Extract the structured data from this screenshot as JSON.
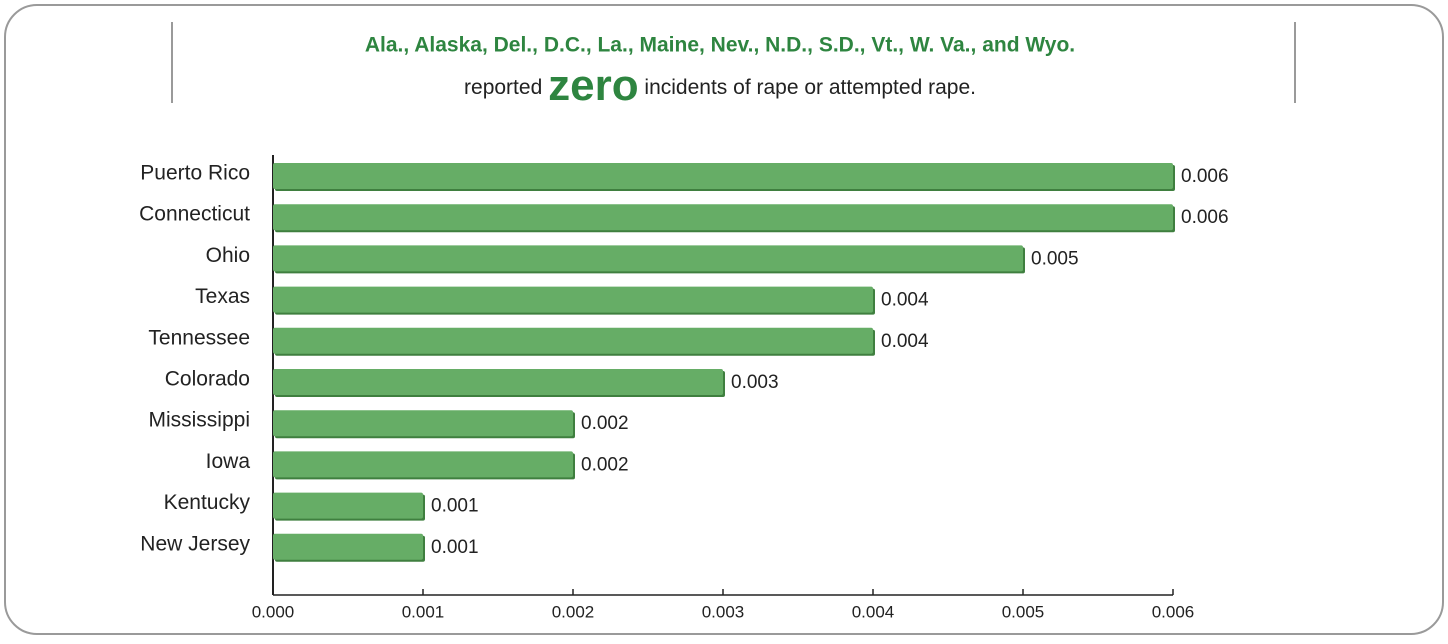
{
  "chart_data": {
    "type": "bar",
    "orientation": "horizontal",
    "title": "Ala., Alaska, Del., D.C., La., Maine, Nev., N.D., S.D., Vt., W. Va., and Wyo.",
    "subtitle_parts": [
      "reported",
      "zero",
      "incidents of rape or attempted rape."
    ],
    "categories": [
      "Puerto Rico",
      "Connecticut",
      "Ohio",
      "Texas",
      "Tennessee",
      "Colorado",
      "Mississippi",
      "Iowa",
      "Kentucky",
      "New Jersey"
    ],
    "values": [
      0.006,
      0.006,
      0.005,
      0.004,
      0.004,
      0.003,
      0.002,
      0.002,
      0.001,
      0.001
    ],
    "color": "#66ad66",
    "title_color": "#2e8540",
    "xlim": [
      0,
      0.006
    ],
    "xticks": [
      {
        "value": 0,
        "label": "0.000"
      },
      0.001,
      0.002,
      0.003,
      0.004,
      0.005,
      0.006
    ],
    "grid": false
  }
}
